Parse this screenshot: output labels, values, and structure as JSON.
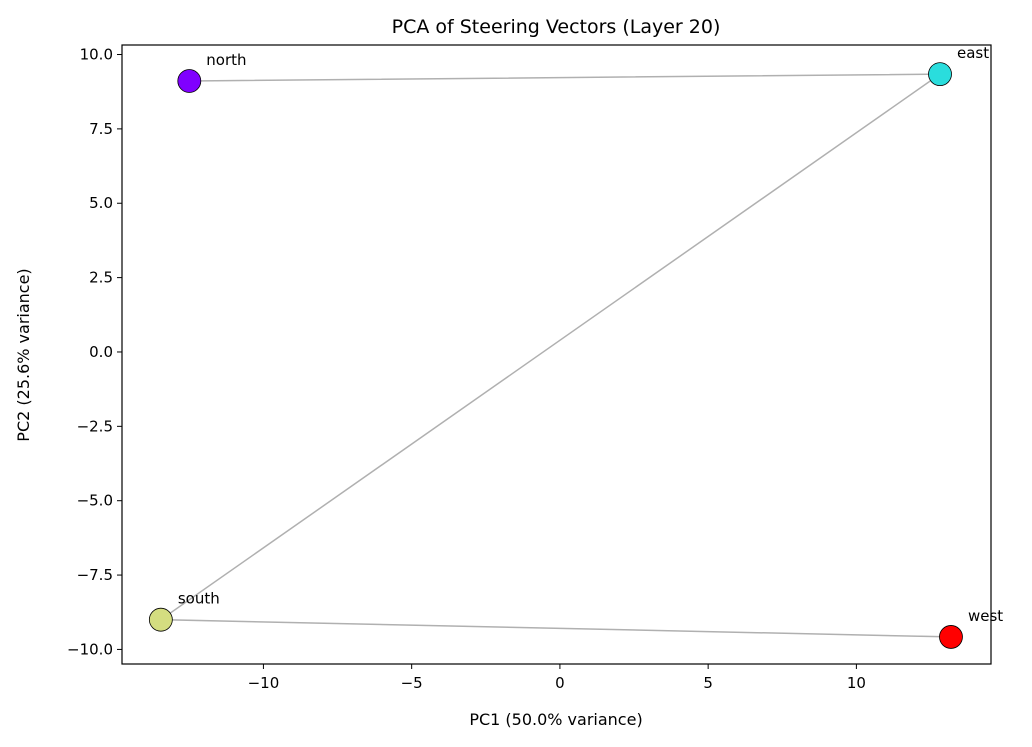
{
  "chart_data": {
    "type": "scatter",
    "title": "PCA of Steering Vectors (Layer 20)",
    "xlabel": "PC1 (50.0% variance)",
    "ylabel": "PC2 (25.6% variance)",
    "xlim": [
      -14.77,
      14.54
    ],
    "ylim": [
      -10.49,
      10.32
    ],
    "xticks": [
      -10,
      -5,
      0,
      5,
      10
    ],
    "xtick_labels": [
      "−10",
      "−5",
      "0",
      "5",
      "10"
    ],
    "yticks": [
      -10,
      -7.5,
      -5,
      -2.5,
      0,
      2.5,
      5,
      7.5,
      10
    ],
    "ytick_labels": [
      "−10.0",
      "−7.5",
      "−5.0",
      "−2.5",
      "0.0",
      "2.5",
      "5.0",
      "7.5",
      "10.0"
    ],
    "grid": false,
    "points": [
      {
        "label": "north",
        "x": -12.5,
        "y": 9.11,
        "color": "#8000ff"
      },
      {
        "label": "east",
        "x": 12.82,
        "y": 9.34,
        "color": "#2adddd"
      },
      {
        "label": "south",
        "x": -13.46,
        "y": -9.0,
        "color": "#d4dd80"
      },
      {
        "label": "west",
        "x": 13.19,
        "y": -9.58,
        "color": "#ff0000"
      }
    ],
    "connecting_line_color": "#b0b0b0"
  }
}
